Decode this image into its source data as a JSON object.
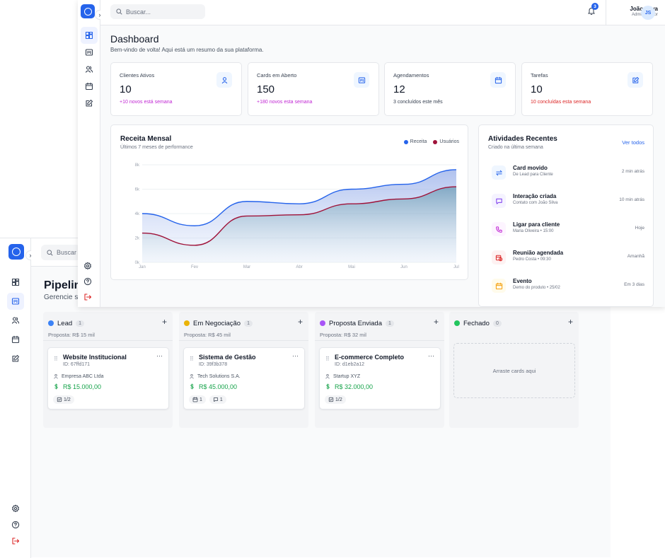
{
  "colors": {
    "accent": "#2563eb",
    "revenue": "#2563eb",
    "users": "#9f1239",
    "positive": "#c026d3",
    "negative": "#dc2626",
    "money": "#16a34a"
  },
  "back": {
    "search_placeholder": "Buscar",
    "title": "Pipelin",
    "subtitle": "Gerencie s",
    "sidebar_icons": [
      "dashboard-icon",
      "board-icon",
      "users-icon",
      "calendar-icon",
      "edit-icon"
    ],
    "bottom_icons": [
      "settings-icon",
      "help-icon",
      "logout-icon"
    ],
    "columns": [
      {
        "name": "Lead",
        "color": "#3b82f6",
        "count": "1",
        "proposal": "Proposta: R$ 15 mil",
        "card": {
          "title": "Website Institucional",
          "id": "ID: 67ffd171",
          "company": "Empresa ABC Ltda",
          "value": "R$ 15.000,00",
          "tags": [
            {
              "icon": "checklist-icon",
              "text": "1/2"
            }
          ]
        }
      },
      {
        "name": "Em Negociação",
        "color": "#eab308",
        "count": "1",
        "proposal": "Proposta: R$ 45 mil",
        "card": {
          "title": "Sistema de Gestão",
          "id": "ID: 39f3b378",
          "company": "Tech Solutions S.A.",
          "value": "R$ 45.000,00",
          "tags": [
            {
              "icon": "calendar-icon",
              "text": "1"
            },
            {
              "icon": "comment-icon",
              "text": "1"
            }
          ]
        }
      },
      {
        "name": "Proposta Enviada",
        "color": "#a855f7",
        "count": "1",
        "proposal": "Proposta: R$ 32 mil",
        "card": {
          "title": "E-commerce Completo",
          "id": "ID: d1eb2a12",
          "company": "Startup XYZ",
          "value": "R$ 32.000,00",
          "tags": [
            {
              "icon": "checklist-icon",
              "text": "1/2"
            }
          ]
        }
      },
      {
        "name": "Fechado",
        "color": "#22c55e",
        "count": "0",
        "empty_text": "Arraste cards aqui"
      }
    ]
  },
  "front": {
    "search_placeholder": "Buscar...",
    "notification_count": "3",
    "user": {
      "name": "João Silva",
      "role": "Administrador",
      "initials": "JS"
    },
    "title": "Dashboard",
    "subtitle": "Bem-vindo de volta! Aqui está um resumo da sua plataforma.",
    "stats": [
      {
        "label": "Clientes Ativos",
        "value": "10",
        "sub": "+10 novos está semana",
        "icon": "user-icon",
        "sub_color": "#c026d3"
      },
      {
        "label": "Cards em Aberto",
        "value": "150",
        "sub": "+180 novos esta semana",
        "icon": "board-icon",
        "sub_color": "#c026d3"
      },
      {
        "label": "Agendamentos",
        "value": "12",
        "sub": "3 concluídos este mês",
        "icon": "calendar-icon",
        "sub_color": "#374151"
      },
      {
        "label": "Tarefas",
        "value": "10",
        "sub": "10 concluídas esta semana",
        "icon": "edit-icon",
        "sub_color": "#dc2626"
      }
    ],
    "chart_panel": {
      "title": "Receita Mensal",
      "subtitle": "Últimos 7 meses de performance"
    },
    "activities": {
      "title": "Atividades Recentes",
      "subtitle": "Criado na última semana",
      "see_all": "Ver todos",
      "items": [
        {
          "title": "Card movido",
          "sub": "De Lead para Cliente",
          "time": "2 min atrás",
          "icon": "swap-icon",
          "bg": "#eff6ff",
          "fg": "#2563eb"
        },
        {
          "title": "Interação criada",
          "sub": "Contato com João Silva",
          "time": "10 min atrás",
          "icon": "message-icon",
          "bg": "#f5f3ff",
          "fg": "#7c3aed"
        },
        {
          "title": "Ligar para cliente",
          "sub": "Maria Oliveira • 15:00",
          "time": "Hoje",
          "icon": "phone-icon",
          "bg": "#fdf4ff",
          "fg": "#c026d3"
        },
        {
          "title": "Reunião agendada",
          "sub": "Pedro Costa • 09:30",
          "time": "Amanhã",
          "icon": "calendar-clock-icon",
          "bg": "#fef2f2",
          "fg": "#dc2626"
        },
        {
          "title": "Evento",
          "sub": "Demo do produto • 25/02",
          "time": "Em 3 dias",
          "icon": "calendar-icon",
          "bg": "#fffbeb",
          "fg": "#f59e0b"
        }
      ]
    }
  },
  "chart_data": {
    "type": "area",
    "title": "Receita Mensal",
    "subtitle": "Últimos 7 meses de performance",
    "categories": [
      "Jan",
      "Fev",
      "Mar",
      "Abr",
      "Mai",
      "Jun",
      "Jul"
    ],
    "y_ticks": [
      "0k",
      "2k",
      "4k",
      "6k",
      "8k"
    ],
    "ylim": [
      0,
      8000
    ],
    "legend_position": "top-right",
    "grid": true,
    "series": [
      {
        "name": "Receita",
        "color": "#2563eb",
        "values": [
          4000,
          3000,
          5000,
          4800,
          6000,
          6400,
          7600
        ]
      },
      {
        "name": "Usuários",
        "color": "#9f1239",
        "values": [
          2400,
          1400,
          3800,
          3900,
          4800,
          5200,
          6200
        ]
      }
    ]
  }
}
